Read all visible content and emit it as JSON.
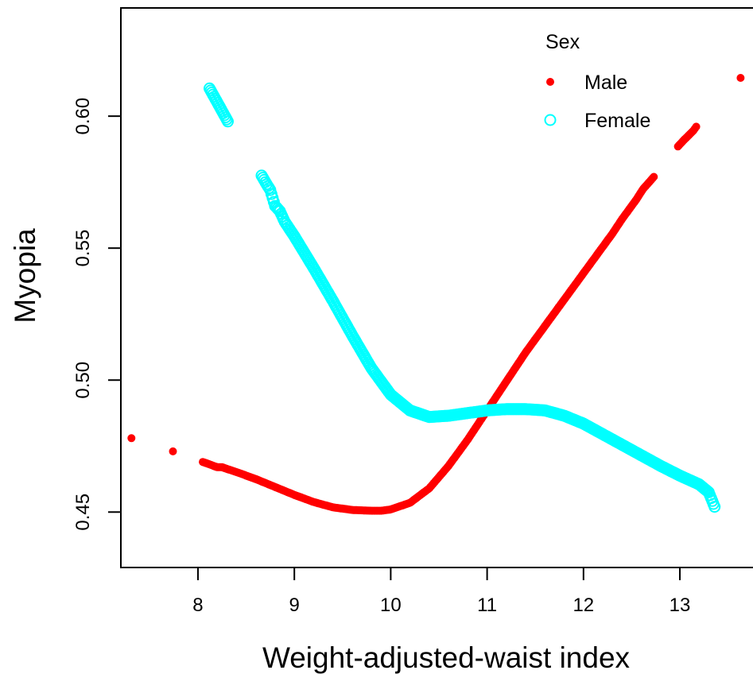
{
  "chart_data": {
    "type": "scatter",
    "title": "",
    "xlabel": "Weight-adjusted-waist index",
    "ylabel": "Myopia",
    "xlim": [
      7.2,
      13.8
    ],
    "ylim": [
      0.429,
      0.641
    ],
    "x_ticks": [
      8,
      9,
      10,
      11,
      12,
      13
    ],
    "x_tick_labels": [
      "8",
      "9",
      "10",
      "11",
      "12",
      "13"
    ],
    "y_ticks": [
      0.45,
      0.5,
      0.55,
      0.6
    ],
    "y_tick_labels": [
      "0.45",
      "0.50",
      "0.55",
      "0.60"
    ],
    "grid": false,
    "legend": {
      "title": "Sex",
      "placement": "top-right",
      "entries": [
        "Male",
        "Female"
      ]
    },
    "series": [
      {
        "name": "Male",
        "marker": "filled-circle",
        "color": "#ff0000",
        "x": [
          7.31,
          7.74,
          8.05,
          8.2,
          8.25,
          8.33,
          8.45,
          8.6,
          8.8,
          9.0,
          9.2,
          9.4,
          9.6,
          9.8,
          9.9,
          10.0,
          10.2,
          10.4,
          10.6,
          10.8,
          11.0,
          11.2,
          11.4,
          11.6,
          11.8,
          12.0,
          12.1,
          12.2,
          12.3,
          12.4,
          12.45,
          12.55,
          12.62,
          12.67,
          12.73,
          12.98,
          13.03,
          13.14,
          13.17,
          13.63
        ],
        "y": [
          0.478,
          0.473,
          0.469,
          0.467,
          0.467,
          0.466,
          0.4645,
          0.4625,
          0.4595,
          0.4565,
          0.4538,
          0.4518,
          0.4508,
          0.4505,
          0.4505,
          0.451,
          0.4535,
          0.459,
          0.4675,
          0.4775,
          0.4885,
          0.4995,
          0.5105,
          0.5205,
          0.5305,
          0.5405,
          0.5455,
          0.5505,
          0.5555,
          0.561,
          0.5635,
          0.5685,
          0.5725,
          0.5745,
          0.577,
          0.5885,
          0.5905,
          0.5945,
          0.596,
          0.6145
        ]
      },
      {
        "name": "Female",
        "marker": "open-circle",
        "color": "#00ffff",
        "x": [
          8.12,
          8.31,
          8.66,
          8.7,
          8.75,
          8.8,
          8.85,
          8.9,
          9.0,
          9.2,
          9.4,
          9.6,
          9.8,
          10.0,
          10.2,
          10.4,
          10.6,
          10.8,
          11.0,
          11.2,
          11.4,
          11.6,
          11.8,
          12.0,
          12.2,
          12.4,
          12.6,
          12.8,
          13.0,
          13.2,
          13.3,
          13.36
        ],
        "y": [
          0.6105,
          0.598,
          0.5775,
          0.575,
          0.572,
          0.566,
          0.564,
          0.56,
          0.5545,
          0.5425,
          0.53,
          0.517,
          0.5045,
          0.4945,
          0.4885,
          0.486,
          0.4865,
          0.4875,
          0.4885,
          0.489,
          0.489,
          0.4885,
          0.4865,
          0.4835,
          0.4795,
          0.4755,
          0.4715,
          0.4675,
          0.4638,
          0.4605,
          0.4575,
          0.452
        ]
      }
    ]
  }
}
